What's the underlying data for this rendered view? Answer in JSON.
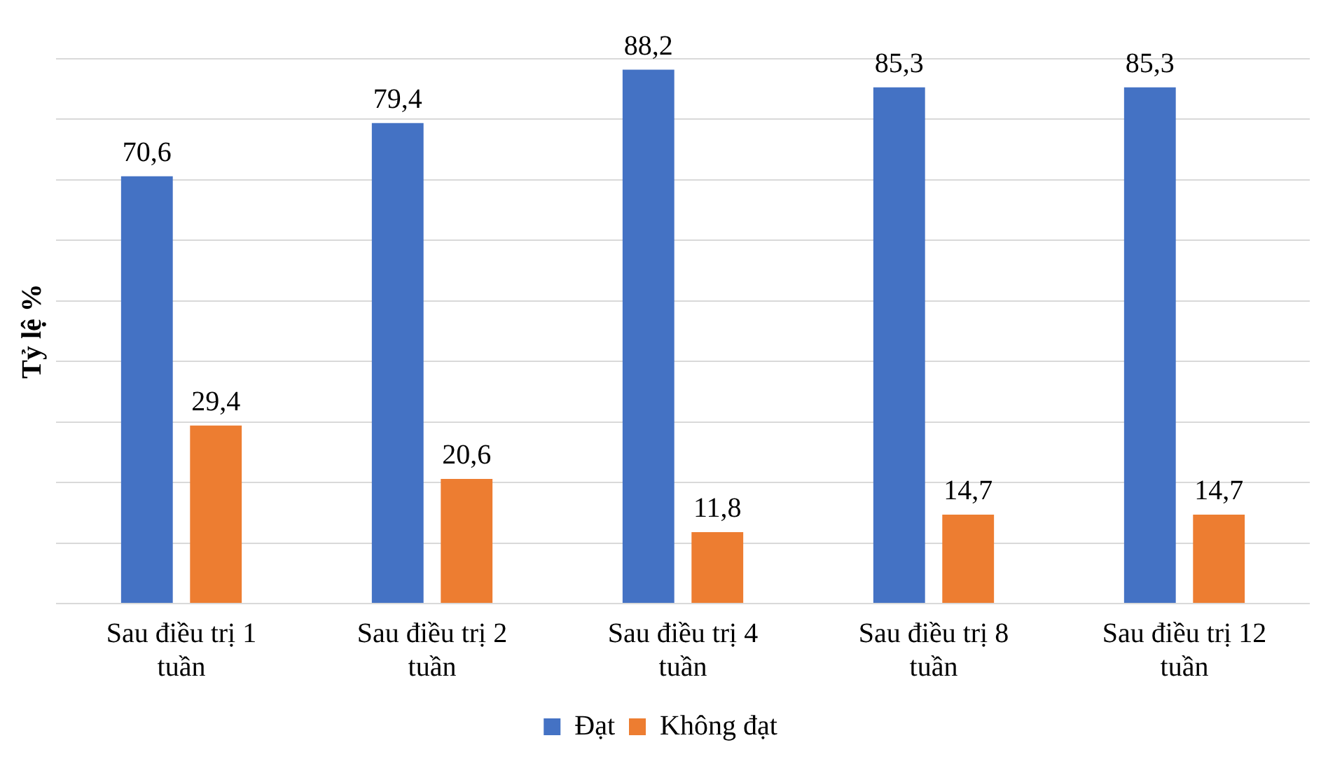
{
  "chart_data": {
    "type": "bar",
    "ylabel": "Tỷ lệ %",
    "categories": [
      "Sau điều trị 1 tuần",
      "Sau điều trị 2 tuần",
      "Sau điều trị 4 tuần",
      "Sau điều trị 8 tuần",
      "Sau điều trị 12 tuần"
    ],
    "series": [
      {
        "name": "Đạt",
        "color": "#4472c4",
        "values": [
          70.6,
          79.4,
          88.2,
          85.3,
          85.3
        ],
        "value_labels": [
          "70,6",
          "79,4",
          "88,2",
          "85,3",
          "85,3"
        ]
      },
      {
        "name": "Không đạt",
        "color": "#ed7d31",
        "values": [
          29.4,
          20.6,
          11.8,
          14.7,
          14.7
        ],
        "value_labels": [
          "29,4",
          "20,6",
          "11,8",
          "14,7",
          "14,7"
        ]
      }
    ],
    "tick_labels": "x",
    "grid": "y",
    "legend": "bottom"
  }
}
